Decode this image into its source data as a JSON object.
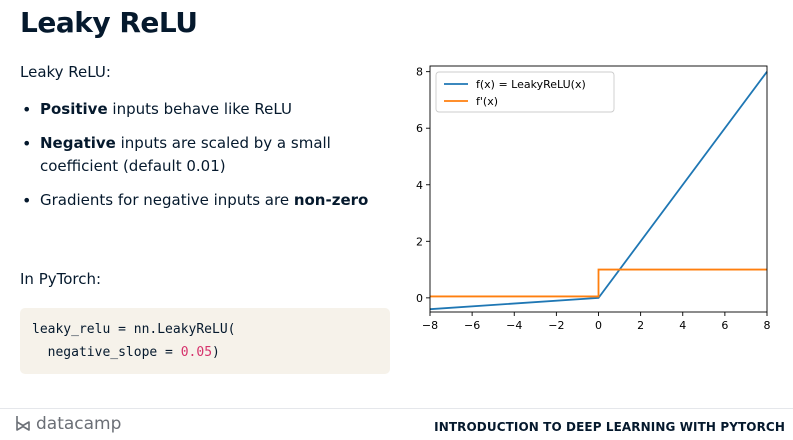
{
  "slide": {
    "title": "Leaky ReLU",
    "subtitle": "Leaky ReLU:",
    "bullets": [
      {
        "bold": "Positive",
        "rest": " inputs behave like ReLU"
      },
      {
        "bold": "Negative",
        "rest": " inputs are scaled by a small coefficient (default 0.01)"
      },
      {
        "prefix": "Gradients for negative inputs are ",
        "bold": "non-zero"
      }
    ],
    "pytorch_label": "In PyTorch:",
    "code": {
      "line1": "leaky_relu = nn.LeakyReLU(",
      "line2_prefix": "  negative_slope = ",
      "line2_number": "0.05",
      "line2_suffix": ")"
    }
  },
  "footer": {
    "brand": "datacamp",
    "course": "INTRODUCTION TO DEEP LEARNING WITH PYTORCH"
  },
  "colors": {
    "series_f": "#1f77b4",
    "series_df": "#ff7f0e",
    "code_bg": "#f6f2ea",
    "code_number": "#d6336c"
  },
  "chart_data": {
    "type": "line",
    "title": "",
    "xlabel": "",
    "ylabel": "",
    "xlim": [
      -8,
      8
    ],
    "ylim": [
      -0.5,
      8.2
    ],
    "xticks": [
      -8,
      -6,
      -4,
      -2,
      0,
      2,
      4,
      6,
      8
    ],
    "yticks": [
      0,
      2,
      4,
      6,
      8
    ],
    "legend": "top-left",
    "grid": false,
    "series": [
      {
        "name": "f(x) = LeakyReLU(x)",
        "x": [
          -8,
          0,
          8
        ],
        "y": [
          -0.4,
          0,
          8
        ]
      },
      {
        "name": "f'(x)",
        "x": [
          -8,
          0,
          0,
          8
        ],
        "y": [
          0.05,
          0.05,
          1,
          1
        ]
      }
    ]
  }
}
